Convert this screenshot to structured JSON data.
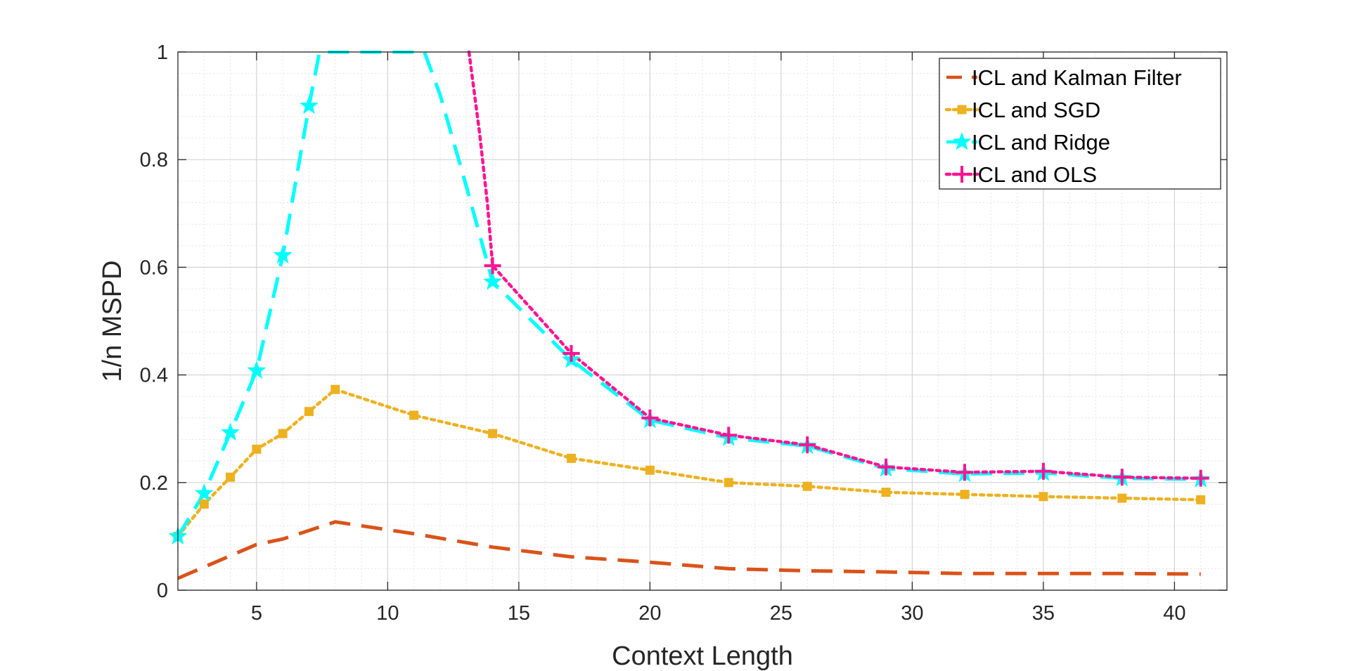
{
  "chart_data": {
    "type": "line",
    "title": "",
    "xlabel": "Context Length",
    "ylabel": "1/n MSPD",
    "xlim": [
      2,
      42
    ],
    "ylim": [
      0,
      1
    ],
    "xticks": [
      5,
      10,
      15,
      20,
      25,
      30,
      35,
      40
    ],
    "yticks": [
      0,
      0.2,
      0.4,
      0.6,
      0.8,
      1
    ],
    "ytick_labels": [
      "0",
      "0.2",
      "0.4",
      "0.6",
      "0.8",
      "1"
    ],
    "grid": true,
    "minor_grid": true,
    "legend_position": "top-right",
    "series": [
      {
        "name": "ICL and Kalman Filter",
        "color": "#D95319",
        "line_style": "dashed",
        "marker": "none",
        "x": [
          2,
          5,
          6,
          8,
          11,
          14,
          17,
          20,
          23,
          26,
          29,
          32,
          35,
          38,
          41
        ],
        "y": [
          0.022,
          0.085,
          0.095,
          0.127,
          0.105,
          0.08,
          0.062,
          0.052,
          0.04,
          0.036,
          0.034,
          0.031,
          0.031,
          0.031,
          0.03
        ]
      },
      {
        "name": "ICL and SGD",
        "color": "#EDB120",
        "line_style": "dotted",
        "marker": "square",
        "x": [
          2,
          3,
          4,
          5,
          6,
          7,
          8,
          11,
          14,
          17,
          20,
          23,
          26,
          29,
          32,
          35,
          38,
          41
        ],
        "y": [
          0.1,
          0.16,
          0.21,
          0.262,
          0.291,
          0.332,
          0.373,
          0.325,
          0.291,
          0.245,
          0.223,
          0.2,
          0.193,
          0.182,
          0.178,
          0.174,
          0.171,
          0.168
        ]
      },
      {
        "name": "ICL and Ridge",
        "color": "#00FFFF",
        "line_style": "dashed",
        "marker": "star",
        "x": [
          2,
          3,
          4,
          5,
          6,
          7,
          7.4,
          11.4,
          12,
          13,
          14,
          17,
          20,
          23,
          26,
          29,
          32,
          35,
          38,
          41
        ],
        "y": [
          0.1,
          0.18,
          0.293,
          0.408,
          0.622,
          0.9,
          1.0,
          1.0,
          0.92,
          0.75,
          0.573,
          0.428,
          0.316,
          0.283,
          0.268,
          0.226,
          0.216,
          0.218,
          0.208,
          0.206
        ],
        "marker_x": [
          2,
          3,
          4,
          5,
          6,
          7,
          14,
          17,
          20,
          23,
          26,
          29,
          32,
          35,
          38,
          41
        ]
      },
      {
        "name": "ICL and OLS",
        "color": "#FF1493",
        "line_style": "dotted",
        "marker": "plus",
        "x": [
          13.1,
          13.5,
          13.8,
          14,
          17,
          20,
          23,
          26,
          29,
          32,
          35,
          38,
          41
        ],
        "y": [
          1.0,
          0.85,
          0.72,
          0.603,
          0.44,
          0.32,
          0.288,
          0.27,
          0.229,
          0.219,
          0.221,
          0.21,
          0.208
        ],
        "marker_x": [
          14,
          17,
          20,
          23,
          26,
          29,
          32,
          35,
          38,
          41
        ]
      }
    ]
  }
}
